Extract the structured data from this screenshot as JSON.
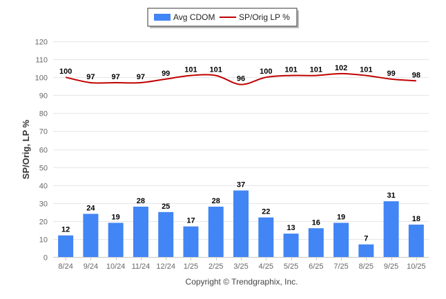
{
  "chart_data": {
    "type": "bar",
    "categories": [
      "8/24",
      "9/24",
      "10/24",
      "11/24",
      "12/24",
      "1/25",
      "2/25",
      "3/25",
      "4/25",
      "5/25",
      "6/25",
      "7/25",
      "8/25",
      "9/25",
      "10/25"
    ],
    "series": [
      {
        "name": "Avg CDOM",
        "type": "bar",
        "color": "#4285f4",
        "values": [
          12,
          24,
          19,
          28,
          25,
          17,
          28,
          37,
          22,
          13,
          16,
          19,
          7,
          31,
          18
        ]
      },
      {
        "name": "SP/Orig LP %",
        "type": "line",
        "color": "#c00000",
        "values": [
          100,
          97,
          97,
          97,
          99,
          101,
          101,
          96,
          100,
          101,
          101,
          102,
          101,
          99,
          98
        ]
      }
    ],
    "ylabel": "SP/Orig, LP %",
    "yticks": [
      0,
      10,
      20,
      30,
      40,
      50,
      60,
      70,
      80,
      90,
      100,
      110,
      120
    ],
    "ylim": [
      0,
      120
    ],
    "grid": true,
    "legend_position": "top-center"
  },
  "footer": {
    "copyright": "Copyright © Trendgraphix, Inc."
  }
}
